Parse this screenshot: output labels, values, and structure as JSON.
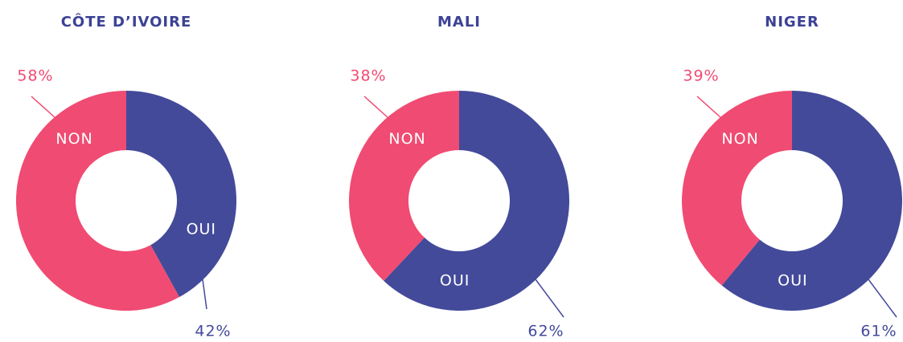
{
  "chart_data": [
    {
      "type": "pie",
      "title": "CÔTE D’IVOIRE",
      "categories": [
        "OUI",
        "NON"
      ],
      "values": [
        42,
        58
      ],
      "value_labels": [
        "42%",
        "58%"
      ],
      "colors": [
        "#434a9a",
        "#f04b72"
      ]
    },
    {
      "type": "pie",
      "title": "MALI",
      "categories": [
        "OUI",
        "NON"
      ],
      "values": [
        62,
        38
      ],
      "value_labels": [
        "62%",
        "38%"
      ],
      "colors": [
        "#434a9a",
        "#f04b72"
      ]
    },
    {
      "type": "pie",
      "title": "NIGER",
      "categories": [
        "OUI",
        "NON"
      ],
      "values": [
        61,
        39
      ],
      "value_labels": [
        "61%",
        "39%"
      ],
      "colors": [
        "#434a9a",
        "#f04b72"
      ]
    }
  ]
}
